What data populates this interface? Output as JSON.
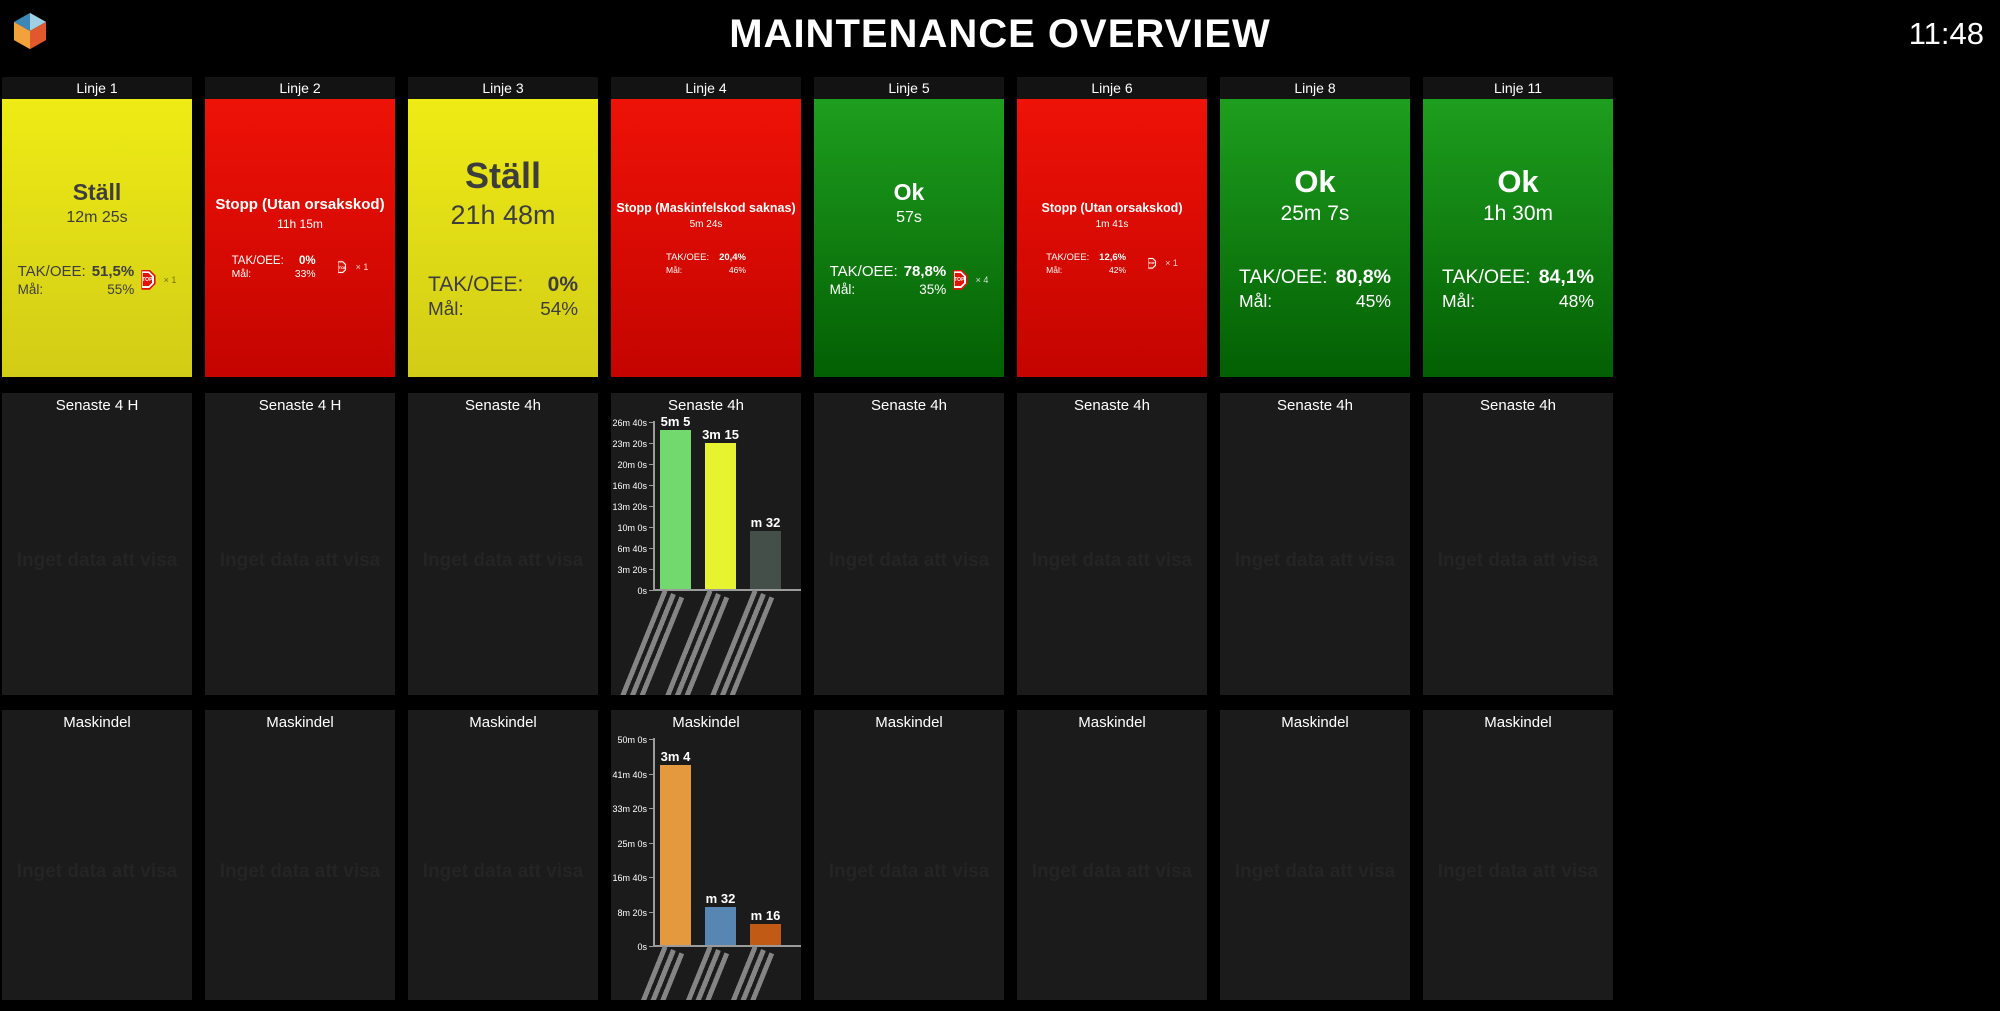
{
  "header": {
    "title": "MAINTENANCE OVERVIEW",
    "clock": "11:48",
    "logo_colors": {
      "top_left": "#3c87b5",
      "top_right": "#9fd0e4",
      "bottom_left": "#f2a13b",
      "bottom_right": "#e0582b"
    }
  },
  "labels": {
    "no_data": "Inget data att visa",
    "tak_label": "TAK/OEE:",
    "mal_label": "Mål:",
    "stop_icon_text": "STOP"
  },
  "status_colors": {
    "yellow": "#e5e015",
    "red": "#d90803",
    "green": "#0f7d0f"
  },
  "columns": [
    {
      "title": "Linje 1",
      "status": {
        "color": "yellow",
        "size": "md",
        "label": "Ställ",
        "duration": "12m 25s",
        "tak": "51,5%",
        "mal": "55%",
        "stop_count": "× 1",
        "stop_size": 20
      },
      "senaste": {
        "header": "Senaste 4 H",
        "chart_id": null
      },
      "maskindel": {
        "header": "Maskindel",
        "chart_id": null
      }
    },
    {
      "title": "Linje 2",
      "status": {
        "color": "red",
        "size": "sm",
        "label": "Stopp (Utan orsakskod)",
        "duration": "11h 15m",
        "tak": "0%",
        "mal": "33%",
        "stop_count": "× 1",
        "stop_size": 14
      },
      "senaste": {
        "header": "Senaste 4 H",
        "chart_id": null
      },
      "maskindel": {
        "header": "Maskindel",
        "chart_id": null
      }
    },
    {
      "title": "Linje 3",
      "status": {
        "color": "yellow",
        "size": "xl",
        "label": "Ställ",
        "duration": "21h 48m",
        "tak": "0%",
        "mal": "54%",
        "stop_count": null,
        "stop_size": 0
      },
      "senaste": {
        "header": "Senaste 4h",
        "chart_id": null
      },
      "maskindel": {
        "header": "Maskindel",
        "chart_id": null
      }
    },
    {
      "title": "Linje 4",
      "status": {
        "color": "red",
        "size": "xs",
        "label": "Stopp (Maskinfelskod saknas)",
        "duration": "5m 24s",
        "tak": "20,4%",
        "mal": "46%",
        "stop_count": null,
        "stop_size": 0
      },
      "senaste": {
        "header": "Senaste 4h",
        "chart_id": "linje4_senaste4h"
      },
      "maskindel": {
        "header": "Maskindel",
        "chart_id": "linje4_maskindel"
      }
    },
    {
      "title": "Linje 5",
      "status": {
        "color": "green",
        "size": "md",
        "label": "Ok",
        "duration": "57s",
        "tak": "78,8%",
        "mal": "35%",
        "stop_count": "× 4",
        "stop_size": 20
      },
      "senaste": {
        "header": "Senaste 4h",
        "chart_id": null
      },
      "maskindel": {
        "header": "Maskindel",
        "chart_id": null
      }
    },
    {
      "title": "Linje 6",
      "status": {
        "color": "red",
        "size": "xs",
        "label": "Stopp (Utan orsakskod)",
        "duration": "1m 41s",
        "tak": "12,6%",
        "mal": "42%",
        "stop_count": "× 1",
        "stop_size": 13
      },
      "senaste": {
        "header": "Senaste 4h",
        "chart_id": null
      },
      "maskindel": {
        "header": "Maskindel",
        "chart_id": null
      }
    },
    {
      "title": "Linje 8",
      "status": {
        "color": "green",
        "size": "lg",
        "label": "Ok",
        "duration": "25m 7s",
        "tak": "80,8%",
        "mal": "45%",
        "stop_count": null,
        "stop_size": 0
      },
      "senaste": {
        "header": "Senaste 4h",
        "chart_id": null
      },
      "maskindel": {
        "header": "Maskindel",
        "chart_id": null
      }
    },
    {
      "title": "Linje 11",
      "status": {
        "color": "green",
        "size": "lg",
        "label": "Ok",
        "duration": "1h 30m",
        "tak": "84,1%",
        "mal": "48%",
        "stop_count": null,
        "stop_size": 0
      },
      "senaste": {
        "header": "Senaste 4h",
        "chart_id": null
      },
      "maskindel": {
        "header": "Maskindel",
        "chart_id": null
      }
    }
  ],
  "chart_data": [
    {
      "id": "linje4_senaste4h",
      "type": "bar",
      "title": "Senaste 4h (Linje 4)",
      "ymax_seconds": 1600,
      "grid": false,
      "yticks": [
        {
          "label": "26m 40s",
          "seconds": 1600
        },
        {
          "label": "23m 20s",
          "seconds": 1400
        },
        {
          "label": "20m 0s",
          "seconds": 1200
        },
        {
          "label": "16m 40s",
          "seconds": 1000
        },
        {
          "label": "13m 20s",
          "seconds": 800
        },
        {
          "label": "10m 0s",
          "seconds": 600
        },
        {
          "label": "6m 40s",
          "seconds": 400
        },
        {
          "label": "3m 20s",
          "seconds": 200
        },
        {
          "label": "0s",
          "seconds": 0
        }
      ],
      "bars": [
        {
          "label": "5m 5",
          "seconds": 1518,
          "color": "#72d96f"
        },
        {
          "label": "3m 15",
          "seconds": 1390,
          "color": "#e7f230"
        },
        {
          "label": "m 32",
          "seconds": 557,
          "color": "#434f48"
        }
      ],
      "x_labels": "rotated-illegible"
    },
    {
      "id": "linje4_maskindel",
      "type": "bar",
      "title": "Maskindel (Linje 4)",
      "ymax_seconds": 3000,
      "grid": false,
      "yticks": [
        {
          "label": "50m 0s",
          "seconds": 3000
        },
        {
          "label": "41m 40s",
          "seconds": 2500
        },
        {
          "label": "33m 20s",
          "seconds": 2000
        },
        {
          "label": "25m 0s",
          "seconds": 1500
        },
        {
          "label": "16m 40s",
          "seconds": 1000
        },
        {
          "label": "8m 20s",
          "seconds": 500
        },
        {
          "label": "0s",
          "seconds": 0
        }
      ],
      "bars": [
        {
          "label": "3m 4",
          "seconds": 2610,
          "color": "#e5993f"
        },
        {
          "label": "m 32",
          "seconds": 555,
          "color": "#5886b3"
        },
        {
          "label": "m 16",
          "seconds": 310,
          "color": "#c05a14"
        }
      ],
      "x_labels": "rotated-illegible"
    }
  ]
}
